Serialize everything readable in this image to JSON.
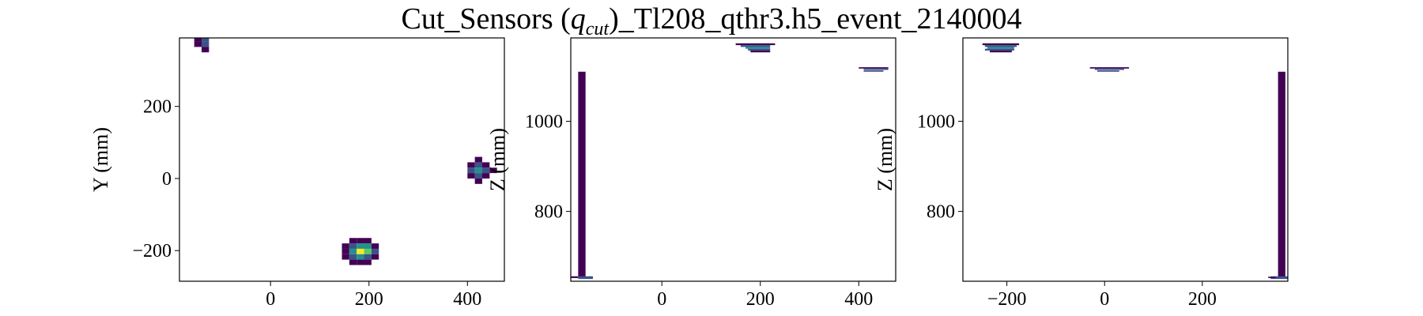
{
  "figure": {
    "title_main": "Cut_Sensors (",
    "title_q": "q",
    "title_sub": "cut",
    "title_end": ")_Tl208_qthr3.h5_event_2140004"
  },
  "colormap": [
    "#440154",
    "#3b528b",
    "#21918c",
    "#5ec962",
    "#fde725"
  ],
  "chart_data": [
    {
      "type": "heatmap",
      "xlabel": "",
      "ylabel": "Y (mm)",
      "xlim": [
        -185,
        475
      ],
      "ylim": [
        -285,
        390
      ],
      "xticks": [
        0,
        200,
        400
      ],
      "yticks": [
        -200,
        0,
        200
      ],
      "xtick_labels": [
        "0",
        "200",
        "400"
      ],
      "ytick_labels": [
        "−200",
        "0",
        "200"
      ],
      "cells": [
        {
          "x": -155,
          "y": 380,
          "w": 15,
          "h": 15,
          "v": 0.05
        },
        {
          "x": -140,
          "y": 380,
          "w": 15,
          "h": 15,
          "v": 0.35
        },
        {
          "x": -155,
          "y": 365,
          "w": 15,
          "h": 15,
          "v": 0.1
        },
        {
          "x": -140,
          "y": 365,
          "w": 15,
          "h": 15,
          "v": 0.3
        },
        {
          "x": -140,
          "y": 350,
          "w": 15,
          "h": 15,
          "v": 0.02
        },
        {
          "x": 415,
          "y": 45,
          "w": 15,
          "h": 15,
          "v": 0.02
        },
        {
          "x": 400,
          "y": 30,
          "w": 15,
          "h": 15,
          "v": 0.05
        },
        {
          "x": 415,
          "y": 30,
          "w": 15,
          "h": 15,
          "v": 0.2
        },
        {
          "x": 430,
          "y": 30,
          "w": 15,
          "h": 15,
          "v": 0.05
        },
        {
          "x": 400,
          "y": 15,
          "w": 15,
          "h": 15,
          "v": 0.15
        },
        {
          "x": 415,
          "y": 15,
          "w": 15,
          "h": 15,
          "v": 0.4
        },
        {
          "x": 430,
          "y": 15,
          "w": 15,
          "h": 15,
          "v": 0.25
        },
        {
          "x": 445,
          "y": 15,
          "w": 15,
          "h": 15,
          "v": 0.03
        },
        {
          "x": 400,
          "y": 0,
          "w": 15,
          "h": 15,
          "v": 0.05
        },
        {
          "x": 415,
          "y": 0,
          "w": 15,
          "h": 15,
          "v": 0.2
        },
        {
          "x": 430,
          "y": 0,
          "w": 15,
          "h": 15,
          "v": 0.1
        },
        {
          "x": 415,
          "y": -15,
          "w": 15,
          "h": 15,
          "v": 0.02
        },
        {
          "x": 160,
          "y": -180,
          "w": 15,
          "h": 15,
          "v": 0.02
        },
        {
          "x": 175,
          "y": -180,
          "w": 15,
          "h": 15,
          "v": 0.05
        },
        {
          "x": 190,
          "y": -180,
          "w": 15,
          "h": 15,
          "v": 0.05
        },
        {
          "x": 145,
          "y": -195,
          "w": 15,
          "h": 15,
          "v": 0.05
        },
        {
          "x": 160,
          "y": -195,
          "w": 15,
          "h": 15,
          "v": 0.3
        },
        {
          "x": 175,
          "y": -195,
          "w": 15,
          "h": 15,
          "v": 0.55
        },
        {
          "x": 190,
          "y": -195,
          "w": 15,
          "h": 15,
          "v": 0.4
        },
        {
          "x": 205,
          "y": -195,
          "w": 15,
          "h": 15,
          "v": 0.1
        },
        {
          "x": 145,
          "y": -210,
          "w": 15,
          "h": 15,
          "v": 0.1
        },
        {
          "x": 160,
          "y": -210,
          "w": 15,
          "h": 15,
          "v": 0.55
        },
        {
          "x": 175,
          "y": -210,
          "w": 15,
          "h": 15,
          "v": 1.0
        },
        {
          "x": 190,
          "y": -210,
          "w": 15,
          "h": 15,
          "v": 0.7
        },
        {
          "x": 205,
          "y": -210,
          "w": 15,
          "h": 15,
          "v": 0.15
        },
        {
          "x": 145,
          "y": -225,
          "w": 15,
          "h": 15,
          "v": 0.05
        },
        {
          "x": 160,
          "y": -225,
          "w": 15,
          "h": 15,
          "v": 0.3
        },
        {
          "x": 175,
          "y": -225,
          "w": 15,
          "h": 15,
          "v": 0.5
        },
        {
          "x": 190,
          "y": -225,
          "w": 15,
          "h": 15,
          "v": 0.35
        },
        {
          "x": 205,
          "y": -225,
          "w": 15,
          "h": 15,
          "v": 0.05
        },
        {
          "x": 160,
          "y": -240,
          "w": 15,
          "h": 15,
          "v": 0.05
        },
        {
          "x": 175,
          "y": -240,
          "w": 15,
          "h": 15,
          "v": 0.05
        },
        {
          "x": 190,
          "y": -240,
          "w": 15,
          "h": 15,
          "v": 0.05
        }
      ]
    },
    {
      "type": "heatmap",
      "xlabel": "",
      "ylabel": "Z (mm)",
      "xlim": [
        -185,
        475
      ],
      "ylim": [
        645,
        1185
      ],
      "xticks": [
        0,
        200,
        400
      ],
      "yticks": [
        800,
        1000
      ],
      "xtick_labels": [
        "0",
        "200",
        "400"
      ],
      "ytick_labels": [
        "800",
        "1000"
      ],
      "cells": [
        {
          "x": -170,
          "y": 655,
          "w": 15,
          "h": 455,
          "v": 0.0
        },
        {
          "x": -185,
          "y": 652,
          "w": 15,
          "h": 4,
          "v": 0.1
        },
        {
          "x": -170,
          "y": 650,
          "w": 30,
          "h": 6,
          "v": 0.3
        },
        {
          "x": 150,
          "y": 1169,
          "w": 80,
          "h": 4,
          "v": 0.05
        },
        {
          "x": 160,
          "y": 1165,
          "w": 60,
          "h": 4,
          "v": 0.35
        },
        {
          "x": 170,
          "y": 1161,
          "w": 50,
          "h": 4,
          "v": 0.55
        },
        {
          "x": 175,
          "y": 1157,
          "w": 45,
          "h": 4,
          "v": 0.3
        },
        {
          "x": 180,
          "y": 1153,
          "w": 40,
          "h": 4,
          "v": 0.05
        },
        {
          "x": 400,
          "y": 1117,
          "w": 60,
          "h": 3,
          "v": 0.05
        },
        {
          "x": 410,
          "y": 1114,
          "w": 50,
          "h": 3,
          "v": 0.3
        },
        {
          "x": 410,
          "y": 1110,
          "w": 40,
          "h": 3,
          "v": 0.15
        }
      ]
    },
    {
      "type": "heatmap",
      "xlabel": "",
      "ylabel": "Z (mm)",
      "xlim": [
        -290,
        375
      ],
      "ylim": [
        645,
        1185
      ],
      "xticks": [
        -200,
        0,
        200
      ],
      "yticks": [
        800,
        1000
      ],
      "xtick_labels": [
        "−200",
        "0",
        "200"
      ],
      "ytick_labels": [
        "800",
        "1000"
      ],
      "cells": [
        {
          "x": 355,
          "y": 655,
          "w": 15,
          "h": 455,
          "v": 0.0
        },
        {
          "x": 340,
          "y": 650,
          "w": 35,
          "h": 6,
          "v": 0.3
        },
        {
          "x": 335,
          "y": 652,
          "w": 15,
          "h": 3,
          "v": 0.05
        },
        {
          "x": -250,
          "y": 1169,
          "w": 75,
          "h": 4,
          "v": 0.05
        },
        {
          "x": -245,
          "y": 1165,
          "w": 65,
          "h": 4,
          "v": 0.35
        },
        {
          "x": -240,
          "y": 1161,
          "w": 55,
          "h": 4,
          "v": 0.55
        },
        {
          "x": -245,
          "y": 1157,
          "w": 60,
          "h": 4,
          "v": 0.3
        },
        {
          "x": -235,
          "y": 1153,
          "w": 45,
          "h": 4,
          "v": 0.05
        },
        {
          "x": -30,
          "y": 1117,
          "w": 80,
          "h": 3,
          "v": 0.05
        },
        {
          "x": -20,
          "y": 1114,
          "w": 60,
          "h": 3,
          "v": 0.3
        },
        {
          "x": -15,
          "y": 1110,
          "w": 45,
          "h": 3,
          "v": 0.15
        }
      ]
    }
  ]
}
